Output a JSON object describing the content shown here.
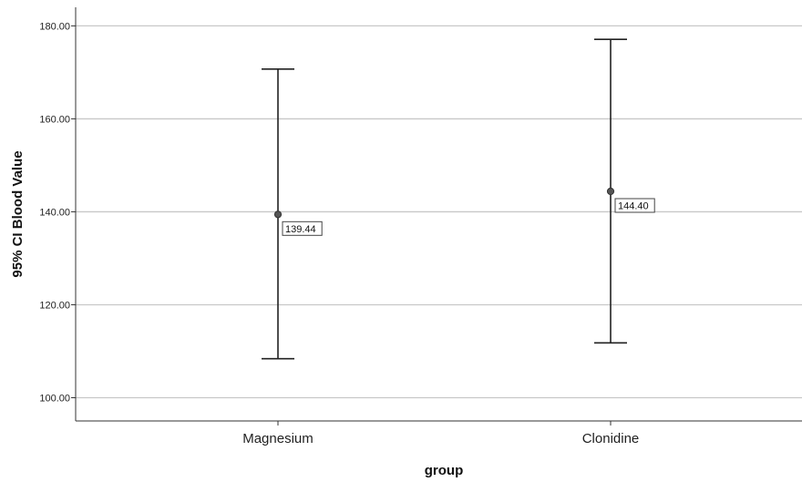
{
  "chart_data": {
    "type": "errorbar",
    "title": "",
    "xlabel": "group",
    "ylabel": "95% CI Blood Value",
    "ylim": [
      95,
      184
    ],
    "yticks": [
      100,
      120,
      140,
      160,
      180
    ],
    "ytick_labels": [
      "100.00",
      "120.00",
      "140.00",
      "160.00",
      "180.00"
    ],
    "categories": [
      "Magnesium",
      "Clonidine"
    ],
    "means": [
      139.44,
      144.4
    ],
    "lower": [
      108.4,
      111.8
    ],
    "upper": [
      170.7,
      177.1
    ],
    "data_labels": [
      "139.44",
      "144.40"
    ],
    "grid": "horizontal",
    "colors": {
      "gridline": "#c8c8c8",
      "marker": "#555555",
      "errorbar": "#222222",
      "axis": "#333333"
    }
  }
}
